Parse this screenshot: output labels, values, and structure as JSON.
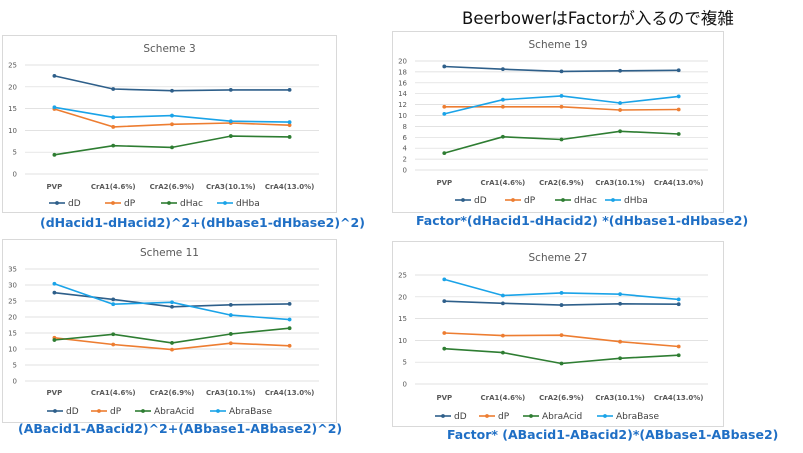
{
  "page": {
    "heading": "BeerbowerはFactorが入るので複雑"
  },
  "colors": {
    "series": [
      "#2e5f8a",
      "#ed7d31",
      "#2e7d32",
      "#1aa3e8"
    ],
    "gridline": "#d9d9d9",
    "formula_text": "#1f6fc5"
  },
  "chart_data": [
    {
      "type": "line",
      "title": "Scheme 3",
      "categories": [
        "PVP",
        "CrA1(4.6%)",
        "CrA2(6.9%)",
        "CrA3(10.1%)",
        "CrA4(13.0%)"
      ],
      "ylim": [
        0,
        25
      ],
      "yticks": [
        0,
        5,
        10,
        15,
        20,
        25
      ],
      "grid": true,
      "legend_position": "bottom",
      "series": [
        {
          "name": "dD",
          "values": [
            22.5,
            19.5,
            19.1,
            19.3,
            19.3
          ]
        },
        {
          "name": "dP",
          "values": [
            14.9,
            10.8,
            11.4,
            11.7,
            11.2
          ]
        },
        {
          "name": "dHac",
          "values": [
            4.4,
            6.5,
            6.1,
            8.7,
            8.5
          ]
        },
        {
          "name": "dHba",
          "values": [
            15.3,
            13.0,
            13.4,
            12.1,
            11.9
          ]
        }
      ],
      "formula": "(dHacid1-dHacid2)^2+(dHbase1-dHbase2)^2)"
    },
    {
      "type": "line",
      "title": "Scheme 19",
      "categories": [
        "PVP",
        "CrA1(4.6%)",
        "CrA2(6.9%)",
        "CrA3(10.1%)",
        "CrA4(13.0%)"
      ],
      "ylim": [
        0,
        20
      ],
      "yticks": [
        0,
        2,
        4,
        6,
        8,
        10,
        12,
        14,
        16,
        18,
        20
      ],
      "grid": true,
      "legend_position": "bottom",
      "series": [
        {
          "name": "dD",
          "values": [
            19.0,
            18.5,
            18.1,
            18.2,
            18.3
          ]
        },
        {
          "name": "dP",
          "values": [
            11.6,
            11.6,
            11.6,
            11.0,
            11.1
          ]
        },
        {
          "name": "dHac",
          "values": [
            3.1,
            6.1,
            5.6,
            7.1,
            6.6
          ]
        },
        {
          "name": "dHba",
          "values": [
            10.3,
            12.9,
            13.6,
            12.3,
            13.5
          ]
        }
      ],
      "formula": "Factor*(dHacid1-dHacid2) *(dHbase1-dHbase2)"
    },
    {
      "type": "line",
      "title": "Scheme 11",
      "categories": [
        "PVP",
        "CrA1(4.6%)",
        "CrA2(6.9%)",
        "CrA3(10.1%)",
        "CrA4(13.0%)"
      ],
      "ylim": [
        0,
        35
      ],
      "yticks": [
        0,
        5,
        10,
        15,
        20,
        25,
        30,
        35
      ],
      "grid": true,
      "legend_position": "bottom",
      "series": [
        {
          "name": "dD",
          "values": [
            27.6,
            25.5,
            23.2,
            23.8,
            24.1
          ]
        },
        {
          "name": "dP",
          "values": [
            13.5,
            11.4,
            9.8,
            11.8,
            11.0
          ]
        },
        {
          "name": "AbraAcid",
          "values": [
            12.8,
            14.6,
            11.9,
            14.7,
            16.5
          ]
        },
        {
          "name": "AbraBase",
          "values": [
            30.4,
            24.0,
            24.6,
            20.6,
            19.2
          ]
        }
      ],
      "formula": "(ABacid1-ABacid2)^2+(ABbase1-ABbase2)^2)"
    },
    {
      "type": "line",
      "title": "Scheme 27",
      "categories": [
        "PVP",
        "CrA1(4.6%)",
        "CrA2(6.9%)",
        "CrA3(10.1%)",
        "CrA4(13.0%)"
      ],
      "ylim": [
        0,
        25
      ],
      "yticks": [
        0,
        5,
        10,
        15,
        20,
        25
      ],
      "grid": true,
      "legend_position": "bottom",
      "series": [
        {
          "name": "dD",
          "values": [
            19.0,
            18.5,
            18.1,
            18.4,
            18.3
          ]
        },
        {
          "name": "dP",
          "values": [
            11.7,
            11.1,
            11.2,
            9.7,
            8.6
          ]
        },
        {
          "name": "AbraAcid",
          "values": [
            8.1,
            7.2,
            4.7,
            5.9,
            6.6
          ]
        },
        {
          "name": "AbraBase",
          "values": [
            24.0,
            20.3,
            20.9,
            20.6,
            19.4
          ]
        }
      ],
      "formula": "Factor* (ABacid1-ABacid2)*(ABbase1-ABbase2)"
    }
  ]
}
